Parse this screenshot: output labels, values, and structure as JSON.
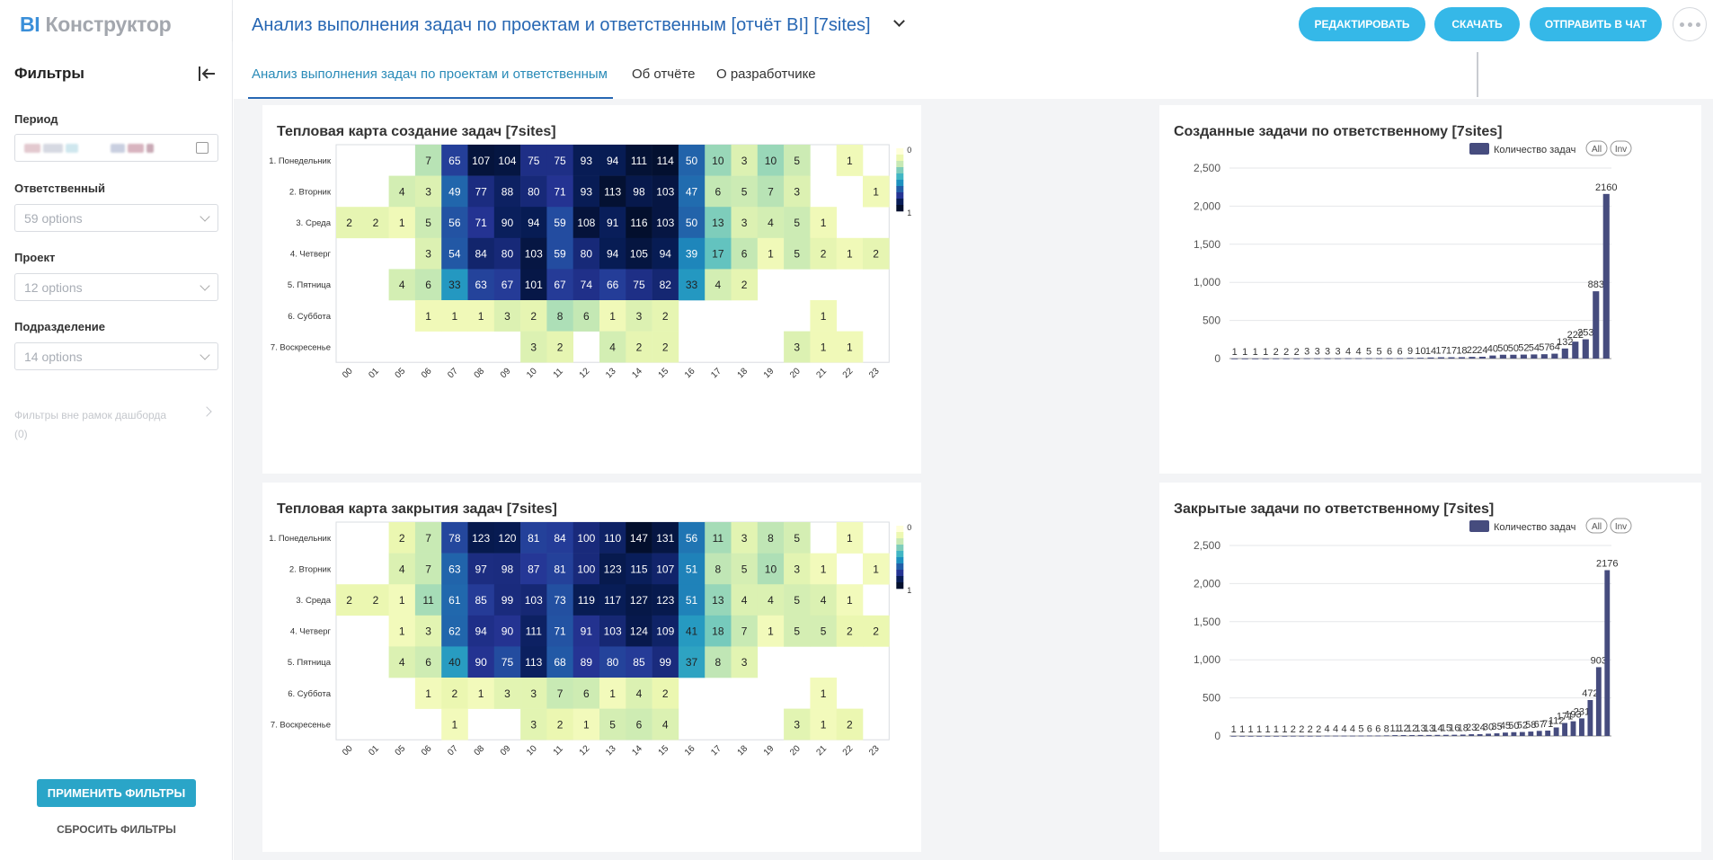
{
  "app": {
    "logo_bi": "BI",
    "logo_rest": "Конструктор"
  },
  "header": {
    "title": "Анализ выполнения задач по проектам и ответственным [отчёт BI] [7sites]",
    "edit": "РЕДАКТИРОВАТЬ",
    "download": "СКАЧАТЬ",
    "send": "ОТПРАВИТЬ В ЧАТ"
  },
  "tabs": [
    "Анализ выполнения задач по проектам и ответственным",
    "Об отчёте",
    "О разработчике"
  ],
  "filters": {
    "title": "Фильтры",
    "period_label": "Период",
    "responsible_label": "Ответственный",
    "responsible_value": "59 options",
    "project_label": "Проект",
    "project_value": "12 options",
    "division_label": "Подразделение",
    "division_value": "14 options",
    "outside_line1": "Фильтры вне рамок дашборда",
    "outside_line2": "(0)",
    "apply": "ПРИМЕНИТЬ ФИЛЬТРЫ",
    "reset": "СБРОСИТЬ ФИЛЬТРЫ"
  },
  "colors": {
    "accent": "#2767b3",
    "button": "#35b8e8",
    "apply": "#2aa5c8",
    "bar": "#464c7e"
  },
  "chart_data": [
    {
      "type": "heatmap",
      "title": "Тепловая карта создание задач [7sites]",
      "x": [
        "00",
        "01",
        "05",
        "06",
        "07",
        "08",
        "09",
        "10",
        "11",
        "12",
        "13",
        "14",
        "15",
        "16",
        "17",
        "18",
        "19",
        "20",
        "21",
        "22",
        "23"
      ],
      "y": [
        "1. Понедельник",
        "2. Вторник",
        "3. Среда",
        "4. Четверг",
        "5. Пятница",
        "6. Суббота",
        "7. Воскресенье"
      ],
      "legend": [
        "0",
        "1"
      ],
      "values": [
        [
          null,
          null,
          null,
          7,
          65,
          107,
          104,
          75,
          75,
          93,
          94,
          111,
          114,
          50,
          10,
          3,
          10,
          5,
          null,
          1,
          null
        ],
        [
          null,
          null,
          4,
          3,
          49,
          77,
          88,
          80,
          71,
          93,
          113,
          98,
          103,
          47,
          6,
          5,
          7,
          3,
          null,
          null,
          1
        ],
        [
          2,
          2,
          1,
          5,
          56,
          71,
          90,
          94,
          59,
          108,
          91,
          116,
          103,
          50,
          13,
          3,
          4,
          5,
          1,
          null,
          null
        ],
        [
          null,
          null,
          null,
          3,
          54,
          84,
          80,
          103,
          59,
          80,
          94,
          105,
          94,
          39,
          17,
          6,
          1,
          5,
          2,
          1,
          2
        ],
        [
          null,
          null,
          4,
          6,
          33,
          63,
          67,
          101,
          67,
          74,
          66,
          75,
          82,
          33,
          4,
          2,
          null,
          null,
          null,
          null,
          null
        ],
        [
          null,
          null,
          null,
          1,
          1,
          1,
          3,
          2,
          8,
          6,
          1,
          3,
          2,
          null,
          null,
          null,
          null,
          null,
          1,
          null,
          null
        ],
        [
          null,
          null,
          null,
          null,
          null,
          null,
          null,
          3,
          2,
          null,
          4,
          2,
          2,
          null,
          null,
          null,
          null,
          3,
          1,
          1,
          null
        ]
      ]
    },
    {
      "type": "bar",
      "title": "Созданные задачи по ответственному [7sites]",
      "series": [
        {
          "name": "Количество задач",
          "values": [
            1,
            1,
            1,
            1,
            2,
            2,
            2,
            3,
            3,
            3,
            3,
            4,
            4,
            5,
            5,
            6,
            6,
            9,
            10,
            14,
            17,
            17,
            18,
            22,
            24,
            40,
            50,
            50,
            52,
            54,
            57,
            64,
            132,
            222,
            253,
            883,
            2160
          ]
        }
      ],
      "ylim": [
        0,
        2500
      ],
      "yticks": [
        "0",
        "500",
        "1,000",
        "1,500",
        "2,000",
        "2,500"
      ],
      "legend_buttons": [
        "All",
        "Inv"
      ]
    },
    {
      "type": "heatmap",
      "title": "Тепловая карта закрытия задач [7sites]",
      "x": [
        "00",
        "01",
        "05",
        "06",
        "07",
        "08",
        "09",
        "10",
        "11",
        "12",
        "13",
        "14",
        "15",
        "16",
        "17",
        "18",
        "19",
        "20",
        "21",
        "22",
        "23"
      ],
      "y": [
        "1. Понедельник",
        "2. Вторник",
        "3. Среда",
        "4. Четверг",
        "5. Пятница",
        "6. Суббота",
        "7. Воскресенье"
      ],
      "legend": [
        "0",
        "1"
      ],
      "values": [
        [
          null,
          null,
          2,
          7,
          78,
          123,
          120,
          81,
          84,
          100,
          110,
          147,
          131,
          56,
          11,
          3,
          8,
          5,
          null,
          1,
          null
        ],
        [
          null,
          null,
          4,
          7,
          63,
          97,
          98,
          87,
          81,
          100,
          123,
          115,
          107,
          51,
          8,
          5,
          10,
          3,
          1,
          null,
          1
        ],
        [
          2,
          2,
          1,
          11,
          61,
          85,
          99,
          103,
          73,
          119,
          117,
          127,
          123,
          51,
          13,
          4,
          4,
          5,
          4,
          1,
          null
        ],
        [
          null,
          null,
          1,
          3,
          62,
          94,
          90,
          111,
          71,
          91,
          103,
          124,
          109,
          41,
          18,
          7,
          1,
          5,
          5,
          2,
          2
        ],
        [
          null,
          null,
          4,
          6,
          40,
          90,
          75,
          113,
          68,
          89,
          80,
          85,
          99,
          37,
          8,
          3,
          null,
          null,
          null,
          null,
          null
        ],
        [
          null,
          null,
          null,
          1,
          2,
          1,
          3,
          3,
          7,
          6,
          1,
          4,
          2,
          null,
          null,
          null,
          null,
          null,
          1,
          null,
          null
        ],
        [
          null,
          null,
          null,
          null,
          1,
          null,
          null,
          3,
          2,
          1,
          5,
          6,
          4,
          null,
          null,
          null,
          null,
          3,
          1,
          2,
          null
        ]
      ]
    },
    {
      "type": "bar",
      "title": "Закрытые задачи по ответственному [7sites]",
      "series": [
        {
          "name": "Количество задач",
          "values": [
            1,
            1,
            1,
            1,
            1,
            1,
            1,
            2,
            2,
            2,
            2,
            4,
            4,
            4,
            4,
            5,
            6,
            6,
            8,
            11,
            12,
            12,
            13,
            13,
            14,
            15,
            16,
            18,
            23,
            24,
            30,
            35,
            45,
            50,
            52,
            58,
            67,
            71,
            112,
            171,
            193,
            231,
            472,
            903,
            2176
          ]
        }
      ],
      "ylim": [
        0,
        2500
      ],
      "yticks": [
        "0",
        "500",
        "1,000",
        "1,500",
        "2,000",
        "2,500"
      ],
      "legend_buttons": [
        "All",
        "Inv"
      ]
    }
  ]
}
